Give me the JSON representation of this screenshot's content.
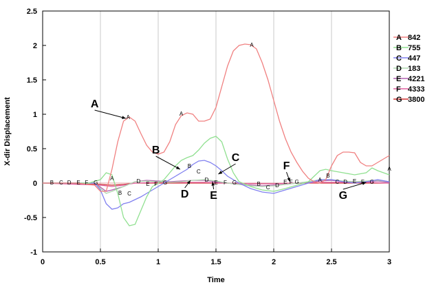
{
  "chart_data": {
    "type": "line",
    "title": "",
    "xlabel": "Time",
    "ylabel": "X-dir Displacement",
    "xlim": [
      0,
      3
    ],
    "ylim": [
      -1,
      2.5
    ],
    "x_ticks": [
      "0",
      "0.5",
      "1",
      "1.5",
      "2",
      "2.5",
      "3"
    ],
    "y_ticks": [
      "-1",
      "-0.5",
      "0",
      "0.5",
      "1",
      "1.5",
      "2",
      "2.5"
    ],
    "grid": "vertical",
    "legend_placement": "right",
    "series": [
      {
        "name": "A",
        "legend_value": "842",
        "color": "#f08080",
        "points": [
          [
            0,
            0
          ],
          [
            0.3,
            0
          ],
          [
            0.45,
            -0.03
          ],
          [
            0.5,
            -0.12
          ],
          [
            0.55,
            -0.12
          ],
          [
            0.6,
            0.2
          ],
          [
            0.65,
            0.6
          ],
          [
            0.7,
            0.9
          ],
          [
            0.75,
            0.96
          ],
          [
            0.8,
            0.9
          ],
          [
            0.85,
            0.72
          ],
          [
            0.9,
            0.55
          ],
          [
            0.95,
            0.45
          ],
          [
            1.0,
            0.42
          ],
          [
            1.05,
            0.45
          ],
          [
            1.1,
            0.6
          ],
          [
            1.15,
            0.85
          ],
          [
            1.2,
            0.98
          ],
          [
            1.25,
            1.02
          ],
          [
            1.3,
            1.0
          ],
          [
            1.35,
            0.9
          ],
          [
            1.4,
            0.9
          ],
          [
            1.45,
            0.93
          ],
          [
            1.5,
            1.1
          ],
          [
            1.55,
            1.4
          ],
          [
            1.6,
            1.7
          ],
          [
            1.65,
            1.92
          ],
          [
            1.7,
            2.0
          ],
          [
            1.75,
            2.02
          ],
          [
            1.8,
            2.01
          ],
          [
            1.85,
            1.95
          ],
          [
            1.9,
            1.75
          ],
          [
            1.95,
            1.5
          ],
          [
            2.0,
            1.2
          ],
          [
            2.05,
            0.9
          ],
          [
            2.1,
            0.65
          ],
          [
            2.15,
            0.45
          ],
          [
            2.2,
            0.3
          ],
          [
            2.25,
            0.17
          ],
          [
            2.3,
            0.07
          ],
          [
            2.35,
            0.02
          ],
          [
            2.4,
            0.0
          ],
          [
            2.45,
            0.05
          ],
          [
            2.5,
            0.25
          ],
          [
            2.55,
            0.4
          ],
          [
            2.6,
            0.45
          ],
          [
            2.65,
            0.45
          ],
          [
            2.7,
            0.44
          ],
          [
            2.75,
            0.3
          ],
          [
            2.8,
            0.25
          ],
          [
            2.85,
            0.25
          ],
          [
            2.9,
            0.3
          ],
          [
            2.95,
            0.35
          ],
          [
            3.0,
            0.4
          ]
        ]
      },
      {
        "name": "B",
        "legend_value": "755",
        "color": "#90e090",
        "points": [
          [
            0,
            0
          ],
          [
            0.4,
            0
          ],
          [
            0.5,
            0.05
          ],
          [
            0.55,
            0.15
          ],
          [
            0.6,
            0.12
          ],
          [
            0.65,
            -0.15
          ],
          [
            0.7,
            -0.5
          ],
          [
            0.75,
            -0.62
          ],
          [
            0.8,
            -0.6
          ],
          [
            0.85,
            -0.4
          ],
          [
            0.9,
            -0.2
          ],
          [
            0.95,
            -0.05
          ],
          [
            1.0,
            0.0
          ],
          [
            1.05,
            0.05
          ],
          [
            1.1,
            0.15
          ],
          [
            1.15,
            0.25
          ],
          [
            1.2,
            0.33
          ],
          [
            1.25,
            0.37
          ],
          [
            1.3,
            0.4
          ],
          [
            1.35,
            0.48
          ],
          [
            1.4,
            0.58
          ],
          [
            1.45,
            0.65
          ],
          [
            1.5,
            0.68
          ],
          [
            1.55,
            0.6
          ],
          [
            1.6,
            0.35
          ],
          [
            1.65,
            0.15
          ],
          [
            1.7,
            0.02
          ],
          [
            1.8,
            -0.05
          ],
          [
            1.9,
            -0.1
          ],
          [
            2.0,
            -0.12
          ],
          [
            2.1,
            -0.08
          ],
          [
            2.2,
            -0.03
          ],
          [
            2.3,
            0.02
          ],
          [
            2.35,
            0.1
          ],
          [
            2.4,
            0.18
          ],
          [
            2.45,
            0.2
          ],
          [
            2.5,
            0.18
          ],
          [
            2.6,
            0.15
          ],
          [
            2.7,
            0.12
          ],
          [
            2.8,
            0.15
          ],
          [
            2.85,
            0.22
          ],
          [
            2.9,
            0.18
          ],
          [
            3.0,
            0.12
          ]
        ]
      },
      {
        "name": "C",
        "legend_value": "447",
        "color": "#8080f0",
        "points": [
          [
            0,
            0
          ],
          [
            0.45,
            0
          ],
          [
            0.5,
            -0.1
          ],
          [
            0.55,
            -0.3
          ],
          [
            0.6,
            -0.38
          ],
          [
            0.65,
            -0.36
          ],
          [
            0.7,
            -0.3
          ],
          [
            0.75,
            -0.28
          ],
          [
            0.8,
            -0.24
          ],
          [
            0.85,
            -0.2
          ],
          [
            0.9,
            -0.15
          ],
          [
            0.95,
            -0.1
          ],
          [
            1.0,
            -0.05
          ],
          [
            1.05,
            0.0
          ],
          [
            1.1,
            0.05
          ],
          [
            1.15,
            0.1
          ],
          [
            1.2,
            0.15
          ],
          [
            1.25,
            0.2
          ],
          [
            1.3,
            0.27
          ],
          [
            1.35,
            0.32
          ],
          [
            1.4,
            0.33
          ],
          [
            1.45,
            0.3
          ],
          [
            1.5,
            0.25
          ],
          [
            1.55,
            0.18
          ],
          [
            1.6,
            0.1
          ],
          [
            1.7,
            0.0
          ],
          [
            1.8,
            -0.08
          ],
          [
            1.9,
            -0.13
          ],
          [
            2.0,
            -0.15
          ],
          [
            2.1,
            -0.1
          ],
          [
            2.2,
            -0.05
          ],
          [
            2.3,
            0.0
          ],
          [
            2.4,
            0.05
          ],
          [
            2.5,
            0.05
          ],
          [
            2.6,
            0.02
          ],
          [
            2.7,
            0.0
          ],
          [
            2.8,
            0.02
          ],
          [
            2.9,
            0.05
          ],
          [
            3.0,
            0.02
          ]
        ]
      },
      {
        "name": "D",
        "legend_value": "183",
        "color": "#b0d8b0",
        "points": [
          [
            0,
            0
          ],
          [
            0.45,
            0
          ],
          [
            0.5,
            -0.08
          ],
          [
            0.55,
            -0.15
          ],
          [
            0.6,
            -0.12
          ],
          [
            0.7,
            -0.05
          ],
          [
            0.8,
            0.02
          ],
          [
            0.9,
            0.03
          ],
          [
            1.0,
            0.02
          ],
          [
            1.1,
            0.01
          ],
          [
            1.2,
            0.02
          ],
          [
            1.3,
            0.04
          ],
          [
            1.4,
            0.05
          ],
          [
            1.5,
            0.03
          ],
          [
            1.6,
            0.0
          ],
          [
            1.7,
            -0.02
          ],
          [
            1.8,
            -0.04
          ],
          [
            1.9,
            -0.05
          ],
          [
            2.0,
            -0.04
          ],
          [
            2.1,
            -0.02
          ],
          [
            2.2,
            0.0
          ],
          [
            2.3,
            0.02
          ],
          [
            2.4,
            0.05
          ],
          [
            2.5,
            0.05
          ],
          [
            2.6,
            0.03
          ],
          [
            2.7,
            0.02
          ],
          [
            2.8,
            0.03
          ],
          [
            2.9,
            0.04
          ],
          [
            3.0,
            0.02
          ]
        ]
      },
      {
        "name": "E",
        "legend_value": "4221",
        "color": "#b060b0",
        "points": [
          [
            0,
            0
          ],
          [
            0.45,
            0
          ],
          [
            0.5,
            -0.06
          ],
          [
            0.55,
            -0.12
          ],
          [
            0.6,
            -0.1
          ],
          [
            0.7,
            -0.05
          ],
          [
            0.8,
            0.02
          ],
          [
            0.9,
            0.04
          ],
          [
            1.0,
            0.03
          ],
          [
            1.1,
            0.02
          ],
          [
            1.2,
            0.03
          ],
          [
            1.3,
            0.04
          ],
          [
            1.4,
            0.04
          ],
          [
            1.5,
            0.02
          ],
          [
            1.6,
            0.0
          ],
          [
            1.7,
            -0.02
          ],
          [
            1.8,
            -0.03
          ],
          [
            1.9,
            -0.04
          ],
          [
            2.0,
            -0.03
          ],
          [
            2.1,
            -0.02
          ],
          [
            2.2,
            0.0
          ],
          [
            2.3,
            0.01
          ],
          [
            2.4,
            0.03
          ],
          [
            2.5,
            0.04
          ],
          [
            2.6,
            0.02
          ],
          [
            2.7,
            0.01
          ],
          [
            2.8,
            0.02
          ],
          [
            2.9,
            0.03
          ],
          [
            3.0,
            0.01
          ]
        ]
      },
      {
        "name": "F",
        "legend_value": "4333",
        "color": "#e060a0",
        "points": [
          [
            0,
            0
          ],
          [
            0.5,
            -0.03
          ],
          [
            0.6,
            -0.05
          ],
          [
            0.7,
            -0.03
          ],
          [
            0.8,
            0.0
          ],
          [
            1.0,
            0.01
          ],
          [
            1.2,
            0.01
          ],
          [
            1.4,
            0.01
          ],
          [
            1.6,
            0.0
          ],
          [
            1.8,
            -0.01
          ],
          [
            2.0,
            -0.01
          ],
          [
            2.2,
            0.0
          ],
          [
            2.4,
            0.01
          ],
          [
            2.6,
            0.01
          ],
          [
            2.8,
            0.01
          ],
          [
            3.0,
            0.0
          ]
        ]
      },
      {
        "name": "G",
        "legend_value": "3800",
        "color": "#d03030",
        "points": [
          [
            0,
            0
          ],
          [
            0.5,
            -0.02
          ],
          [
            0.6,
            -0.03
          ],
          [
            0.7,
            -0.02
          ],
          [
            0.8,
            0.0
          ],
          [
            1.0,
            0.0
          ],
          [
            1.2,
            0.0
          ],
          [
            1.4,
            0.0
          ],
          [
            1.6,
            0.0
          ],
          [
            1.8,
            -0.01
          ],
          [
            2.0,
            -0.01
          ],
          [
            2.2,
            0.0
          ],
          [
            2.4,
            0.0
          ],
          [
            2.6,
            0.0
          ],
          [
            2.8,
            0.0
          ],
          [
            3.0,
            0.0
          ]
        ]
      }
    ],
    "point_markers": [
      {
        "label": "B",
        "x": 0.08,
        "y": 0.01
      },
      {
        "label": "C",
        "x": 0.16,
        "y": 0.01
      },
      {
        "label": "D",
        "x": 0.23,
        "y": 0.01
      },
      {
        "label": "E",
        "x": 0.31,
        "y": 0.01
      },
      {
        "label": "F",
        "x": 0.38,
        "y": 0.01
      },
      {
        "label": "G",
        "x": 0.46,
        "y": 0.01
      },
      {
        "label": "A",
        "x": 0.6,
        "y": 0.07
      },
      {
        "label": "B",
        "x": 0.67,
        "y": -0.14
      },
      {
        "label": "C",
        "x": 0.75,
        "y": -0.15
      },
      {
        "label": "A",
        "x": 0.74,
        "y": 0.96
      },
      {
        "label": "D",
        "x": 0.83,
        "y": 0.03
      },
      {
        "label": "E",
        "x": 0.91,
        "y": -0.01
      },
      {
        "label": "F",
        "x": 0.98,
        "y": -0.01
      },
      {
        "label": "G",
        "x": 1.06,
        "y": 0.01
      },
      {
        "label": "A",
        "x": 1.2,
        "y": 1.01
      },
      {
        "label": "B",
        "x": 1.27,
        "y": 0.25
      },
      {
        "label": "C",
        "x": 1.35,
        "y": 0.17
      },
      {
        "label": "D",
        "x": 1.42,
        "y": 0.05
      },
      {
        "label": "E",
        "x": 1.5,
        "y": 0.01
      },
      {
        "label": "F",
        "x": 1.58,
        "y": 0.01
      },
      {
        "label": "G",
        "x": 1.66,
        "y": 0.01
      },
      {
        "label": "A",
        "x": 1.81,
        "y": 2.01
      },
      {
        "label": "B",
        "x": 1.87,
        "y": -0.01
      },
      {
        "label": "C",
        "x": 1.95,
        "y": -0.06
      },
      {
        "label": "D",
        "x": 2.03,
        "y": -0.03
      },
      {
        "label": "E",
        "x": 2.1,
        "y": 0.02
      },
      {
        "label": "F",
        "x": 2.15,
        "y": 0.02
      },
      {
        "label": "G",
        "x": 2.2,
        "y": 0.02
      },
      {
        "label": "A",
        "x": 2.4,
        "y": 0.05
      },
      {
        "label": "B",
        "x": 2.47,
        "y": 0.11
      },
      {
        "label": "C",
        "x": 2.55,
        "y": 0.02
      },
      {
        "label": "D",
        "x": 2.62,
        "y": 0.02
      },
      {
        "label": "E",
        "x": 2.7,
        "y": 0.03
      },
      {
        "label": "F",
        "x": 2.77,
        "y": 0.02
      },
      {
        "label": "G",
        "x": 2.85,
        "y": 0.02
      },
      {
        "label": "A",
        "x": 3.0,
        "y": 0.21
      }
    ],
    "annotations": [
      {
        "text": "A",
        "tx": 0.45,
        "ty": 1.1,
        "ax": 0.72,
        "ay": 0.94
      },
      {
        "text": "B",
        "tx": 0.98,
        "ty": 0.43,
        "ax": 1.19,
        "ay": 0.2
      },
      {
        "text": "C",
        "tx": 1.67,
        "ty": 0.32,
        "ax": 1.52,
        "ay": 0.13
      },
      {
        "text": "D",
        "tx": 1.23,
        "ty": -0.21,
        "ax": 1.28,
        "ay": 0.04
      },
      {
        "text": "E",
        "tx": 1.48,
        "ty": -0.23,
        "ax": 1.47,
        "ay": 0.02
      },
      {
        "text": "F",
        "tx": 2.11,
        "ty": 0.2,
        "ax": 2.14,
        "ay": 0.02
      },
      {
        "text": "G",
        "tx": 2.6,
        "ty": -0.23,
        "ax": 2.8,
        "ay": 0.01
      }
    ]
  }
}
